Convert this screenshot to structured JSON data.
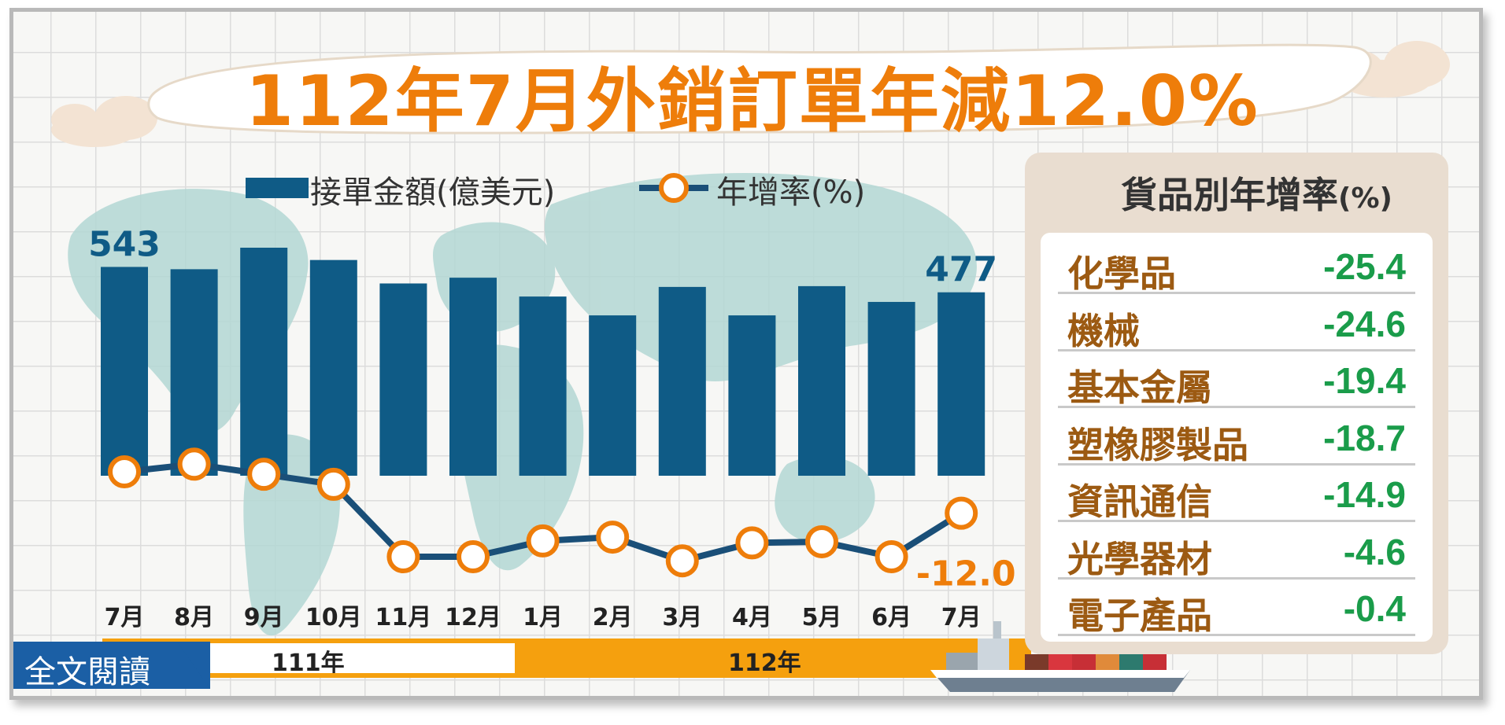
{
  "title": "112年7月外銷訂單年減12.0%",
  "legend": {
    "bar_label": "接單金額(億美元)",
    "line_label": "年增率(%)"
  },
  "chart_data": {
    "type": "bar",
    "categories": [
      "7月",
      "8月",
      "9月",
      "10月",
      "11月",
      "12月",
      "1月",
      "2月",
      "3月",
      "4月",
      "5月",
      "6月",
      "7月"
    ],
    "series": [
      {
        "name": "接單金額(億美元)",
        "type": "bar",
        "values": [
          543,
          537,
          593,
          561,
          500,
          515,
          466,
          417,
          491,
          417,
          493,
          452,
          477
        ]
      },
      {
        "name": "年增率(%)",
        "type": "line",
        "values": [
          3.2,
          6.0,
          2.3,
          -1.4,
          -28.0,
          -28.0,
          -22.2,
          -20.8,
          -29.5,
          -22.9,
          -22.5,
          -28.0,
          -12.0
        ]
      }
    ],
    "data_labels": [
      {
        "series": 0,
        "index": 0,
        "text": "543"
      },
      {
        "series": 0,
        "index": 12,
        "text": "477"
      },
      {
        "series": 1,
        "index": 12,
        "text": "-12.0"
      }
    ],
    "year_bands": [
      {
        "label": "111年",
        "from_index": 0,
        "to_index": 5
      },
      {
        "label": "112年",
        "from_index": 6,
        "to_index": 12
      }
    ],
    "colors": {
      "bar": "#0f5b86",
      "line": "#1a4f78",
      "marker": "#ee7d0a"
    },
    "grid": false,
    "legend_position": "top"
  },
  "panel": {
    "title": "貨品別年增率",
    "title_unit": "(%)",
    "rows": [
      {
        "name": "化學品",
        "value": "-25.4"
      },
      {
        "name": "機械",
        "value": "-24.6"
      },
      {
        "name": "基本金屬",
        "value": "-19.4"
      },
      {
        "name": "塑橡膠製品",
        "value": "-18.7"
      },
      {
        "name": "資訊通信",
        "value": "-14.9"
      },
      {
        "name": "光學器材",
        "value": "-4.6"
      },
      {
        "name": "電子產品",
        "value": "-0.4"
      }
    ]
  },
  "read_button": {
    "label": "全文閱讀"
  },
  "colors": {
    "title": "#ee7d0a",
    "panel_value": "#1a9c4a",
    "panel_name": "#9c5a12",
    "timeline": "#f5a00e"
  }
}
